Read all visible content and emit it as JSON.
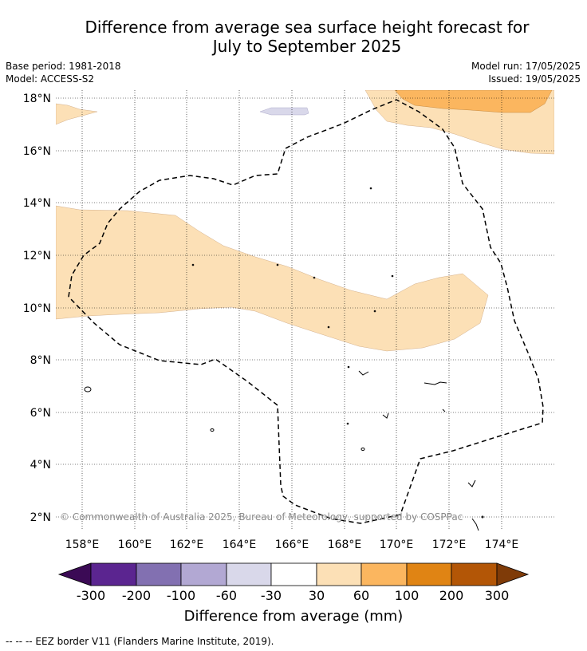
{
  "title_line1": "Difference from average sea surface height forecast for",
  "title_line2": "July to September 2025",
  "meta": {
    "base_period": "Base period: 1981-2018",
    "model": "Model: ACCESS-S2",
    "model_run": "Model run: 17/05/2025",
    "issued": "Issued: 19/05/2025"
  },
  "map": {
    "lat_labels": [
      "18°N",
      "16°N",
      "14°N",
      "12°N",
      "10°N",
      "8°N",
      "6°N",
      "4°N",
      "2°N"
    ],
    "lon_labels": [
      "158°E",
      "160°E",
      "162°E",
      "164°E",
      "166°E",
      "168°E",
      "170°E",
      "172°E",
      "174°E"
    ],
    "copyright": "© Commonwealth of Australia 2025, Bureau of Meteorology, supported by COSPPac"
  },
  "colorbar": {
    "labels": [
      "-300",
      "-200",
      "-100",
      "-60",
      "-30",
      "30",
      "60",
      "100",
      "200",
      "300"
    ],
    "colors": [
      "#3b0a55",
      "#5b2590",
      "#8270b1",
      "#b2a8d3",
      "#d9d8ea",
      "#ffffff",
      "#fce0b6",
      "#fbb65f",
      "#e08414",
      "#b35606",
      "#7f3b08"
    ],
    "title": "Difference from average (mm)"
  },
  "footnote": "--  --  -- EEZ border V11 (Flanders Marine Institute, 2019)."
}
